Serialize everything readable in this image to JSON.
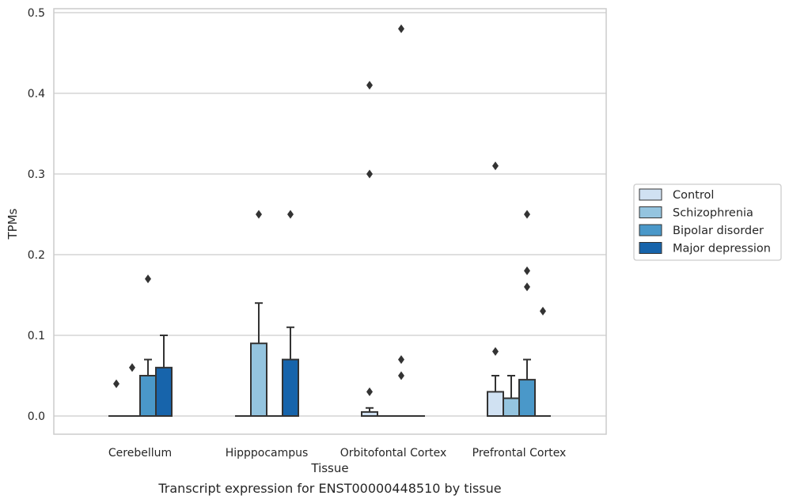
{
  "caption": "Transcript expression for ENST00000448510 by tissue",
  "chart_data": {
    "type": "box",
    "title": "",
    "xlabel": "Tissue",
    "ylabel": "TPMs",
    "ylim": [
      -0.023,
      0.505
    ],
    "yticks": [
      0.0,
      0.1,
      0.2,
      0.3,
      0.4,
      0.5
    ],
    "ytick_labels": [
      "0.0",
      "0.1",
      "0.2",
      "0.3",
      "0.4",
      "0.5"
    ],
    "grid": "horizontal",
    "legend_position": "right",
    "categories": [
      "Cerebellum",
      "Hipppocampus",
      "Orbitofontal Cortex",
      "Prefrontal Cortex"
    ],
    "series": [
      {
        "name": "Control",
        "color": "#d0e1f2",
        "boxes": [
          {
            "q1": 0,
            "median": 0,
            "q3": 0,
            "whisker_low": 0,
            "whisker_high": 0,
            "outliers": [
              0.04
            ]
          },
          {
            "q1": 0,
            "median": 0,
            "q3": 0,
            "whisker_low": 0,
            "whisker_high": 0,
            "outliers": []
          },
          {
            "q1": 0,
            "median": 0,
            "q3": 0.005,
            "whisker_low": 0,
            "whisker_high": 0.01,
            "outliers": [
              0.03,
              0.3,
              0.41
            ]
          },
          {
            "q1": 0,
            "median": 0,
            "q3": 0.03,
            "whisker_low": 0,
            "whisker_high": 0.05,
            "outliers": [
              0.08,
              0.31
            ]
          }
        ]
      },
      {
        "name": "Schizophrenia",
        "color": "#94c4df",
        "boxes": [
          {
            "q1": 0,
            "median": 0,
            "q3": 0,
            "whisker_low": 0,
            "whisker_high": 0,
            "outliers": [
              0.06
            ]
          },
          {
            "q1": 0,
            "median": 0,
            "q3": 0.09,
            "whisker_low": 0,
            "whisker_high": 0.14,
            "outliers": [
              0.25
            ]
          },
          {
            "q1": 0,
            "median": 0,
            "q3": 0,
            "whisker_low": 0,
            "whisker_high": 0,
            "outliers": []
          },
          {
            "q1": 0,
            "median": 0,
            "q3": 0.022,
            "whisker_low": 0,
            "whisker_high": 0.05,
            "outliers": []
          }
        ]
      },
      {
        "name": "Bipolar disorder",
        "color": "#4a98c9",
        "boxes": [
          {
            "q1": 0,
            "median": 0,
            "q3": 0.05,
            "whisker_low": 0,
            "whisker_high": 0.07,
            "outliers": [
              0.17
            ]
          },
          {
            "q1": 0,
            "median": 0,
            "q3": 0,
            "whisker_low": 0,
            "whisker_high": 0,
            "outliers": []
          },
          {
            "q1": 0,
            "median": 0,
            "q3": 0,
            "whisker_low": 0,
            "whisker_high": 0,
            "outliers": [
              0.05,
              0.07,
              0.48
            ]
          },
          {
            "q1": 0,
            "median": 0,
            "q3": 0.045,
            "whisker_low": 0,
            "whisker_high": 0.07,
            "outliers": [
              0.16,
              0.18,
              0.25
            ]
          }
        ]
      },
      {
        "name": "Major depression",
        "color": "#1764ab",
        "boxes": [
          {
            "q1": 0,
            "median": 0,
            "q3": 0.06,
            "whisker_low": 0,
            "whisker_high": 0.1,
            "outliers": []
          },
          {
            "q1": 0,
            "median": 0,
            "q3": 0.07,
            "whisker_low": 0,
            "whisker_high": 0.11,
            "outliers": [
              0.25
            ]
          },
          {
            "q1": 0,
            "median": 0,
            "q3": 0,
            "whisker_low": 0,
            "whisker_high": 0,
            "outliers": []
          },
          {
            "q1": 0,
            "median": 0,
            "q3": 0,
            "whisker_low": 0,
            "whisker_high": 0,
            "outliers": [
              0.13
            ]
          }
        ]
      }
    ]
  }
}
